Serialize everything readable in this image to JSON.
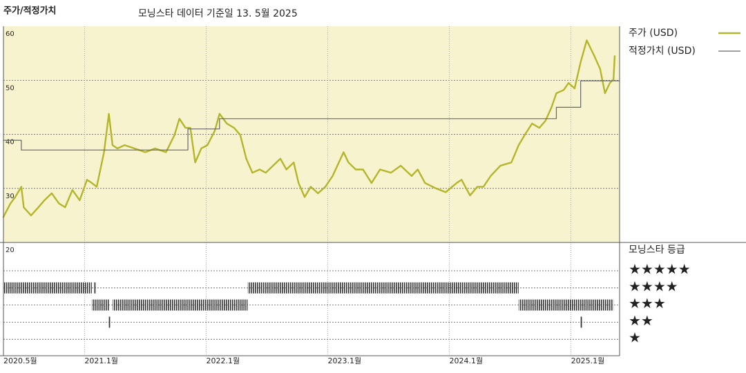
{
  "chart_data": {
    "type": "line",
    "title": "주가/적정가치",
    "subtitle": "모닝스타 데이터 기준일 13. 5월 2025",
    "xlim": [
      2020.333,
      2025.4
    ],
    "xticks": [
      {
        "value": 2020.333,
        "label": "2020.5월"
      },
      {
        "value": 2021.0,
        "label": "2021.1월"
      },
      {
        "value": 2022.0,
        "label": "2022.1월"
      },
      {
        "value": 2023.0,
        "label": "2023.1월"
      },
      {
        "value": 2024.0,
        "label": "2024.1월"
      },
      {
        "value": 2025.0,
        "label": "2025.1월"
      }
    ],
    "ylim": [
      20,
      60
    ],
    "yticks": [
      20,
      30,
      40,
      50,
      60
    ],
    "grid": true,
    "legend": "right",
    "series": [
      {
        "name": "주가 (USD)",
        "color": "#b3b52a",
        "x": [
          2020.33,
          2020.39,
          2020.43,
          2020.48,
          2020.5,
          2020.56,
          2020.62,
          2020.67,
          2020.73,
          2020.79,
          2020.84,
          2020.9,
          2020.96,
          2021.02,
          2021.06,
          2021.1,
          2021.16,
          2021.2,
          2021.23,
          2021.27,
          2021.33,
          2021.41,
          2021.5,
          2021.58,
          2021.67,
          2021.74,
          2021.78,
          2021.83,
          2021.87,
          2021.91,
          2021.96,
          2022.01,
          2022.07,
          2022.11,
          2022.17,
          2022.23,
          2022.28,
          2022.33,
          2022.38,
          2022.44,
          2022.49,
          2022.55,
          2022.61,
          2022.66,
          2022.72,
          2022.76,
          2022.81,
          2022.86,
          2022.92,
          2022.98,
          2023.04,
          2023.13,
          2023.17,
          2023.23,
          2023.29,
          2023.36,
          2023.43,
          2023.52,
          2023.6,
          2023.69,
          2023.74,
          2023.8,
          2023.88,
          2023.97,
          2024.06,
          2024.1,
          2024.17,
          2024.23,
          2024.28,
          2024.34,
          2024.42,
          2024.51,
          2024.57,
          2024.62,
          2024.68,
          2024.74,
          2024.79,
          2024.84,
          2024.88,
          2024.94,
          2024.98,
          2025.03,
          2025.08,
          2025.13,
          2025.19,
          2025.24,
          2025.28,
          2025.32,
          2025.35,
          2025.36
        ],
        "values": [
          24.6,
          27.2,
          28.4,
          30.3,
          26.5,
          25.0,
          26.5,
          27.8,
          29.1,
          27.2,
          26.5,
          29.7,
          27.8,
          31.6,
          31.0,
          30.3,
          36.7,
          43.8,
          38.0,
          37.4,
          38.0,
          37.4,
          36.7,
          37.4,
          36.7,
          39.9,
          42.9,
          41.2,
          41.2,
          34.8,
          37.4,
          38.0,
          40.6,
          43.8,
          42.0,
          41.2,
          39.9,
          35.5,
          32.9,
          33.5,
          32.9,
          34.2,
          35.5,
          33.5,
          34.8,
          31.0,
          28.4,
          30.3,
          29.1,
          30.3,
          32.3,
          36.7,
          34.8,
          33.5,
          33.5,
          31.0,
          33.5,
          32.9,
          34.2,
          32.3,
          33.5,
          31.0,
          30.1,
          29.3,
          31.0,
          31.6,
          28.7,
          30.3,
          30.3,
          32.3,
          34.2,
          34.8,
          38.0,
          39.9,
          42.0,
          41.2,
          42.5,
          45.0,
          47.6,
          48.2,
          49.5,
          48.5,
          53.4,
          57.4,
          54.6,
          52.1,
          47.6,
          49.5,
          50.2,
          54.6
        ]
      },
      {
        "name": "적정가치 (USD)",
        "color": "#666666",
        "step": true,
        "x": [
          2020.33,
          2020.48,
          2021.85,
          2022.11,
          2024.88,
          2025.08,
          2025.4
        ],
        "values": [
          38.9,
          37.1,
          41.0,
          42.9,
          45.0,
          49.9,
          49.9
        ]
      }
    ],
    "ratings": {
      "title": "모닝스타 등급",
      "levels": [
        {
          "value": 5,
          "label": "★★★★★"
        },
        {
          "value": 4,
          "label": "★★★★"
        },
        {
          "value": 3,
          "label": "★★★"
        },
        {
          "value": 2,
          "label": "★★"
        },
        {
          "value": 1,
          "label": "★"
        }
      ],
      "color": "#333333",
      "periods": [
        {
          "start": 2020.33,
          "end": 2021.06,
          "stars": 4
        },
        {
          "start": 2021.08,
          "end": 2021.09,
          "stars": 4
        },
        {
          "start": 2021.06,
          "end": 2021.2,
          "stars": 3
        },
        {
          "start": 2021.2,
          "end": 2021.21,
          "stars": 2
        },
        {
          "start": 2021.23,
          "end": 2022.34,
          "stars": 3
        },
        {
          "start": 2022.34,
          "end": 2024.57,
          "stars": 4
        },
        {
          "start": 2024.57,
          "end": 2025.35,
          "stars": 3
        },
        {
          "start": 2025.08,
          "end": 2025.09,
          "stars": 2
        }
      ]
    }
  }
}
